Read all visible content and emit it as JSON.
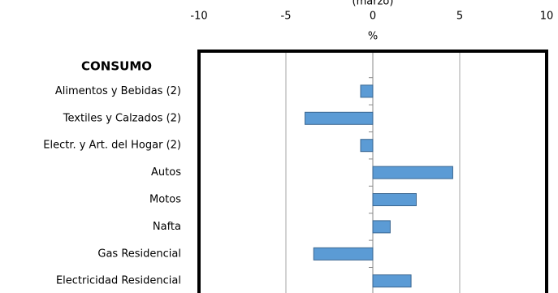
{
  "chart_data": {
    "type": "hbar",
    "subtitle": "(marzo)",
    "x_label": "%",
    "categories": [
      "CONSUMO",
      "Alimentos y Bebidas (2)",
      "Textiles y Calzados (2)",
      "Electr. y Art. del Hogar (2)",
      "Autos",
      "Motos",
      "Nafta",
      "Gas Residencial",
      "Electricidad Residencial"
    ],
    "values": [
      null,
      -0.7,
      -3.9,
      -0.7,
      4.6,
      2.5,
      1.0,
      -3.4,
      2.2
    ],
    "color": "#5b9bd5",
    "xlim": [
      -10,
      10
    ],
    "xticks": [
      -10,
      -5,
      0,
      5,
      10
    ],
    "grid": true
  }
}
